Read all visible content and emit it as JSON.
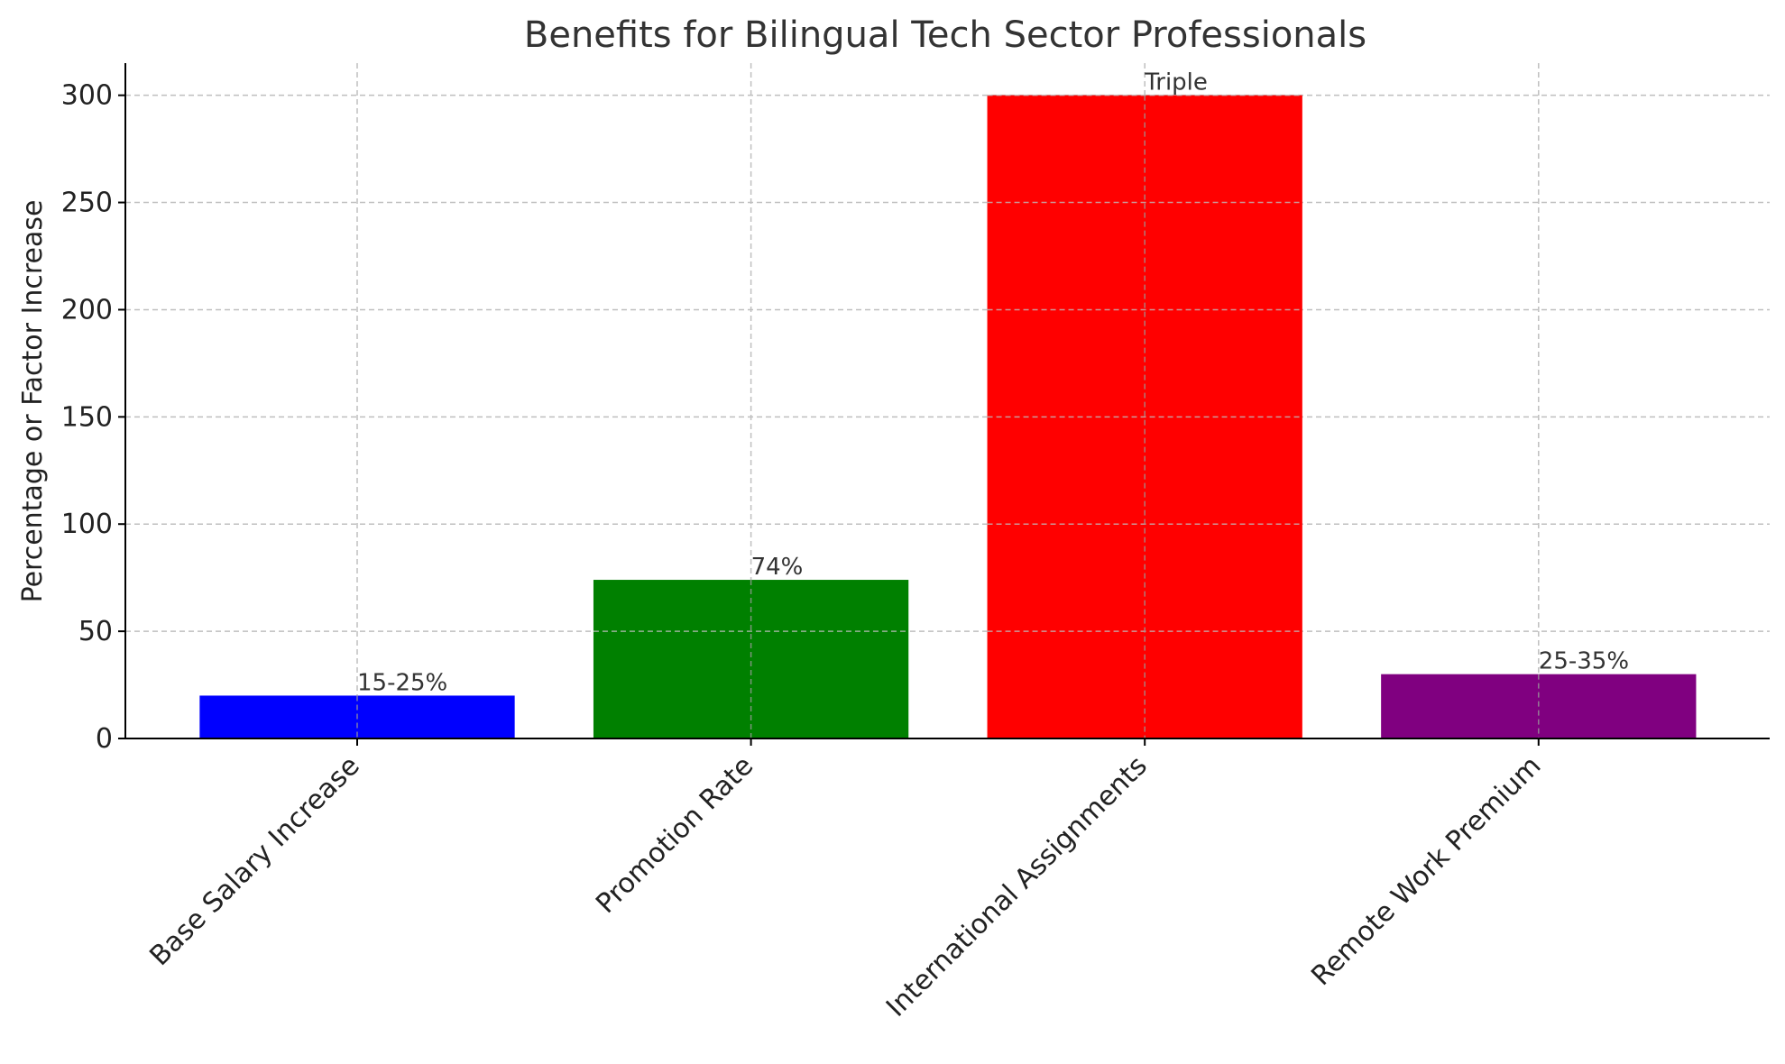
{
  "chart_data": {
    "type": "bar",
    "title": "Benefits for Bilingual Tech Sector Professionals",
    "xlabel": "",
    "ylabel": "Percentage or Factor Increase",
    "categories": [
      "Base Salary Increase",
      "Promotion Rate",
      "International Assignments",
      "Remote Work Premium"
    ],
    "values": [
      20,
      74,
      300,
      30
    ],
    "value_labels": [
      "15-25%",
      "74%",
      "Triple",
      "25-35%"
    ],
    "colors": [
      "#0000ff",
      "#008000",
      "#ff0000",
      "#800080"
    ],
    "yticks": [
      0,
      50,
      100,
      150,
      200,
      250,
      300
    ],
    "ylim": [
      0,
      315
    ],
    "grid": true,
    "legend": "none"
  }
}
